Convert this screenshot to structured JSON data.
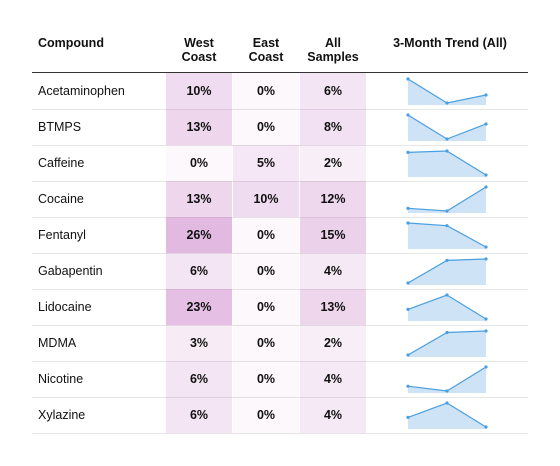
{
  "headers": {
    "compound": "Compound",
    "west": [
      "West",
      "Coast"
    ],
    "east": [
      "East",
      "Coast"
    ],
    "all": [
      "All",
      "Samples"
    ],
    "trend": "3-Month Trend (All)"
  },
  "colors": {
    "heat_base": "#c97fc7",
    "spark_line": "#4a9fe0",
    "spark_fill": "#cfe3f6"
  },
  "chart_data": {
    "type": "table",
    "columns": [
      "Compound",
      "West Coast",
      "East Coast",
      "All Samples",
      "3-Month Trend (All)"
    ],
    "rows": [
      {
        "compound": "Acetaminophen",
        "west": "10%",
        "east": "0%",
        "all": "6%",
        "west_v": 10,
        "east_v": 0,
        "all_v": 6,
        "trend": [
          8,
          2,
          4
        ]
      },
      {
        "compound": "BTMPS",
        "west": "13%",
        "east": "0%",
        "all": "8%",
        "west_v": 13,
        "east_v": 0,
        "all_v": 8,
        "trend": [
          10,
          2,
          7
        ]
      },
      {
        "compound": "Caffeine",
        "west": "0%",
        "east": "5%",
        "all": "2%",
        "west_v": 0,
        "east_v": 5,
        "all_v": 2,
        "trend": [
          6,
          6.3,
          1
        ]
      },
      {
        "compound": "Cocaine",
        "west": "13%",
        "east": "10%",
        "all": "12%",
        "west_v": 13,
        "east_v": 10,
        "all_v": 12,
        "trend": [
          4,
          3,
          12
        ]
      },
      {
        "compound": "Fentanyl",
        "west": "26%",
        "east": "0%",
        "all": "15%",
        "west_v": 26,
        "east_v": 0,
        "all_v": 15,
        "trend": [
          20,
          19,
          11
        ]
      },
      {
        "compound": "Gabapentin",
        "west": "6%",
        "east": "0%",
        "all": "4%",
        "west_v": 6,
        "east_v": 0,
        "all_v": 4,
        "trend": [
          1,
          6,
          6.3
        ]
      },
      {
        "compound": "Lidocaine",
        "west": "23%",
        "east": "0%",
        "all": "13%",
        "west_v": 23,
        "east_v": 0,
        "all_v": 13,
        "trend": [
          10,
          16,
          6
        ]
      },
      {
        "compound": "MDMA",
        "west": "3%",
        "east": "0%",
        "all": "2%",
        "west_v": 3,
        "east_v": 0,
        "all_v": 2,
        "trend": [
          1,
          4,
          4.2
        ]
      },
      {
        "compound": "Nicotine",
        "west": "6%",
        "east": "0%",
        "all": "4%",
        "west_v": 6,
        "east_v": 0,
        "all_v": 4,
        "trend": [
          3,
          2,
          7
        ]
      },
      {
        "compound": "Xylazine",
        "west": "6%",
        "east": "0%",
        "all": "4%",
        "west_v": 6,
        "east_v": 0,
        "all_v": 4,
        "trend": [
          3,
          6,
          1
        ]
      }
    ]
  }
}
